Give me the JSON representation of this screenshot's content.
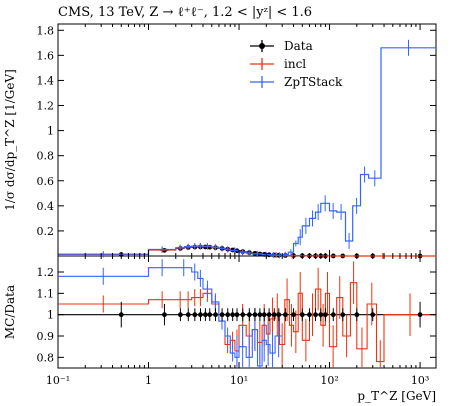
{
  "chart_data": {
    "type": "line",
    "title": "CMS, 13 TeV, Z → ℓ⁺ℓ⁻, 1.2 < |yᶻ| < 1.6",
    "x_scale": "log",
    "xlim": [
      0.1,
      1500
    ],
    "xlabel": "p_T^Z [GeV]",
    "x_ticks": [
      {
        "value": 0.1,
        "label": "10⁻¹"
      },
      {
        "value": 1,
        "label": "1"
      },
      {
        "value": 10,
        "label": "10¹"
      },
      {
        "value": 100,
        "label": "10²"
      },
      {
        "value": 1000,
        "label": "10³"
      }
    ],
    "top_panel": {
      "ylabel": "1/σ dσ/dp_T^Z [1/GeV]",
      "ylim": [
        0,
        1.85
      ],
      "y_ticks": [
        {
          "value": 0.2,
          "label": "0.2"
        },
        {
          "value": 0.4,
          "label": "0.4"
        },
        {
          "value": 0.6,
          "label": "0.6"
        },
        {
          "value": 0.8,
          "label": "0.8"
        },
        {
          "value": 1.0,
          "label": "1"
        },
        {
          "value": 1.2,
          "label": "1.2"
        },
        {
          "value": 1.4,
          "label": "1.4"
        },
        {
          "value": 1.6,
          "label": "1.6"
        },
        {
          "value": 1.8,
          "label": "1.8"
        }
      ],
      "legend": {
        "placement": "top-center",
        "entries": [
          {
            "name": "Data",
            "color": "#000000"
          },
          {
            "name": "incl",
            "color": "#ee3311"
          },
          {
            "name": "ZpTStack",
            "color": "#3366ff"
          }
        ]
      },
      "series": [
        {
          "name": "Data",
          "style": "points",
          "color": "#000000",
          "points": [
            [
              0.5,
              0.012
            ],
            [
              1.5,
              0.045
            ],
            [
              2.25,
              0.06
            ],
            [
              2.75,
              0.068
            ],
            [
              3.25,
              0.071
            ],
            [
              3.75,
              0.072
            ],
            [
              4.25,
              0.072
            ],
            [
              4.75,
              0.07
            ],
            [
              5.5,
              0.066
            ],
            [
              6.5,
              0.06
            ],
            [
              7.5,
              0.054
            ],
            [
              8.5,
              0.048
            ],
            [
              9.5,
              0.042
            ],
            [
              11,
              0.035
            ],
            [
              13,
              0.027
            ],
            [
              15,
              0.021
            ],
            [
              17,
              0.016
            ],
            [
              19,
              0.013
            ],
            [
              21.5,
              0.01
            ],
            [
              24.5,
              0.008
            ],
            [
              27.5,
              0.006
            ],
            [
              32.5,
              0.004
            ],
            [
              40,
              0.003
            ],
            [
              50,
              0.002
            ],
            [
              60,
              0.0015
            ],
            [
              70,
              0.001
            ],
            [
              80,
              0.0008
            ],
            [
              90,
              0.0006
            ],
            [
              110,
              0.0004
            ],
            [
              140,
              0.0003
            ],
            [
              200,
              0.0002
            ],
            [
              300,
              0.0001
            ],
            [
              1000,
              5e-05
            ]
          ]
        },
        {
          "name": "incl",
          "style": "step",
          "color": "#ee3311",
          "bins": [
            [
              0.1,
              1,
              0.013
            ],
            [
              1,
              2,
              0.048
            ],
            [
              2,
              2.5,
              0.062
            ],
            [
              2.5,
              3,
              0.07
            ],
            [
              3,
              3.5,
              0.074
            ],
            [
              3.5,
              4,
              0.075
            ],
            [
              4,
              5,
              0.074
            ],
            [
              5,
              6,
              0.068
            ],
            [
              6,
              7,
              0.061
            ],
            [
              7,
              8,
              0.054
            ],
            [
              8,
              10,
              0.045
            ],
            [
              10,
              12,
              0.033
            ],
            [
              12,
              14,
              0.025
            ],
            [
              14,
              18,
              0.017
            ],
            [
              18,
              22,
              0.011
            ],
            [
              22,
              30,
              0.007
            ],
            [
              30,
              50,
              0.003
            ],
            [
              50,
              100,
              0.001
            ],
            [
              100,
              1500,
              0.0002
            ]
          ]
        },
        {
          "name": "ZpTStack",
          "style": "step",
          "color": "#3366ff",
          "bins": [
            [
              0.1,
              1,
              0.014
            ],
            [
              1,
              2,
              0.052
            ],
            [
              2,
              2.5,
              0.066
            ],
            [
              2.5,
              3,
              0.075
            ],
            [
              3,
              3.5,
              0.079
            ],
            [
              3.5,
              4,
              0.08
            ],
            [
              4,
              5,
              0.078
            ],
            [
              5,
              6,
              0.07
            ],
            [
              6,
              7,
              0.061
            ],
            [
              7,
              8,
              0.052
            ],
            [
              8,
              10,
              0.043
            ],
            [
              10,
              12,
              0.031
            ],
            [
              12,
              14,
              0.023
            ],
            [
              14,
              18,
              0.016
            ],
            [
              18,
              22,
              0.011
            ],
            [
              22,
              26,
              0.008
            ],
            [
              26,
              30,
              0.006
            ],
            [
              30,
              35,
              0.01
            ],
            [
              35,
              40,
              0.03
            ],
            [
              40,
              45,
              0.1
            ],
            [
              45,
              50,
              0.15
            ],
            [
              50,
              60,
              0.24
            ],
            [
              60,
              70,
              0.3
            ],
            [
              70,
              80,
              0.35
            ],
            [
              80,
              100,
              0.42
            ],
            [
              100,
              120,
              0.36
            ],
            [
              120,
              150,
              0.35
            ],
            [
              150,
              180,
              0.12
            ],
            [
              180,
              220,
              0.4
            ],
            [
              220,
              270,
              0.65
            ],
            [
              270,
              370,
              0.62
            ],
            [
              370,
              1500,
              1.66
            ]
          ]
        }
      ]
    },
    "ratio_panel": {
      "ylabel": "MC/Data",
      "ylim": [
        0.75,
        1.275
      ],
      "reference_line": 1.0,
      "y_ticks": [
        {
          "value": 0.8,
          "label": "0.8"
        },
        {
          "value": 0.9,
          "label": "0.9"
        },
        {
          "value": 1.0,
          "label": "1"
        },
        {
          "value": 1.1,
          "label": "1.1"
        },
        {
          "value": 1.2,
          "label": "1.2"
        }
      ],
      "data_points": [
        [
          0.5,
          1.0,
          0.06
        ],
        [
          1.5,
          1.0,
          0.05
        ],
        [
          2.25,
          1.0,
          0.03
        ],
        [
          2.75,
          1.0,
          0.03
        ],
        [
          3.25,
          1.0,
          0.03
        ],
        [
          3.75,
          1.0,
          0.03
        ],
        [
          4.25,
          1.0,
          0.03
        ],
        [
          4.75,
          1.0,
          0.03
        ],
        [
          5.5,
          1.0,
          0.03
        ],
        [
          6.5,
          1.0,
          0.03
        ],
        [
          7.5,
          1.0,
          0.03
        ],
        [
          8.5,
          1.0,
          0.03
        ],
        [
          9.5,
          1.0,
          0.03
        ],
        [
          11,
          1.0,
          0.03
        ],
        [
          13,
          1.0,
          0.03
        ],
        [
          15,
          1.0,
          0.03
        ],
        [
          17,
          1.0,
          0.03
        ],
        [
          19,
          1.0,
          0.03
        ],
        [
          21.5,
          1.0,
          0.03
        ],
        [
          24.5,
          1.0,
          0.03
        ],
        [
          27.5,
          1.0,
          0.03
        ],
        [
          32.5,
          1.0,
          0.03
        ],
        [
          40,
          1.0,
          0.03
        ],
        [
          50,
          1.0,
          0.03
        ],
        [
          60,
          1.0,
          0.03
        ],
        [
          70,
          1.0,
          0.03
        ],
        [
          80,
          1.0,
          0.03
        ],
        [
          90,
          1.0,
          0.03
        ],
        [
          110,
          1.0,
          0.03
        ],
        [
          140,
          1.0,
          0.03
        ],
        [
          200,
          1.0,
          0.03
        ],
        [
          300,
          1.0,
          0.03
        ],
        [
          1000,
          1.0,
          0.06
        ]
      ],
      "series": [
        {
          "name": "incl",
          "color": "#ee3311",
          "bins": [
            [
              0.1,
              1,
              1.05
            ],
            [
              1,
              2,
              1.07
            ],
            [
              2,
              2.5,
              1.07
            ],
            [
              2.5,
              3,
              1.07
            ],
            [
              3,
              3.5,
              1.08
            ],
            [
              3.5,
              4,
              1.08
            ],
            [
              4,
              5,
              1.1
            ],
            [
              5,
              6,
              1.05
            ],
            [
              6,
              7,
              0.97
            ],
            [
              7,
              8,
              0.86
            ],
            [
              8,
              9,
              0.88
            ],
            [
              9,
              10,
              0.83
            ],
            [
              10,
              12,
              0.95
            ],
            [
              12,
              14,
              0.9
            ],
            [
              14,
              16,
              0.93
            ],
            [
              16,
              18,
              0.87
            ],
            [
              18,
              20,
              0.95
            ],
            [
              20,
              22,
              0.91
            ],
            [
              22,
              25,
              0.98
            ],
            [
              25,
              28,
              1.0
            ],
            [
              28,
              32,
              0.86
            ],
            [
              32,
              36,
              1.07
            ],
            [
              36,
              40,
              0.95
            ],
            [
              40,
              45,
              0.92
            ],
            [
              45,
              50,
              1.1
            ],
            [
              50,
              60,
              0.88
            ],
            [
              60,
              70,
              1.0
            ],
            [
              70,
              80,
              1.12
            ],
            [
              80,
              90,
              0.95
            ],
            [
              90,
              100,
              1.1
            ],
            [
              100,
              120,
              0.85
            ],
            [
              120,
              140,
              1.08
            ],
            [
              140,
              170,
              0.9
            ],
            [
              170,
              200,
              1.15
            ],
            [
              200,
              260,
              0.84
            ],
            [
              260,
              330,
              1.05
            ],
            [
              330,
              400,
              0.78
            ],
            [
              400,
              1500,
              1.0
            ]
          ]
        },
        {
          "name": "ZpTStack",
          "color": "#3366ff",
          "bins": [
            [
              0.1,
              1,
              1.18
            ],
            [
              1,
              2,
              1.22
            ],
            [
              2,
              3,
              1.22
            ],
            [
              3,
              3.5,
              1.2
            ],
            [
              3.5,
              4,
              1.17
            ],
            [
              4,
              5,
              1.12
            ],
            [
              5,
              6,
              1.06
            ],
            [
              6,
              7,
              0.97
            ],
            [
              7,
              8,
              0.9
            ],
            [
              8,
              9,
              0.82
            ],
            [
              9,
              10,
              0.8
            ],
            [
              10,
              12,
              0.85
            ],
            [
              12,
              14,
              0.8
            ],
            [
              14,
              16,
              0.93
            ],
            [
              16,
              18,
              0.76
            ],
            [
              18,
              20,
              0.88
            ],
            [
              20,
              22,
              0.86
            ],
            [
              22,
              25,
              0.82
            ],
            [
              25,
              30,
              0.9
            ]
          ]
        }
      ]
    }
  }
}
